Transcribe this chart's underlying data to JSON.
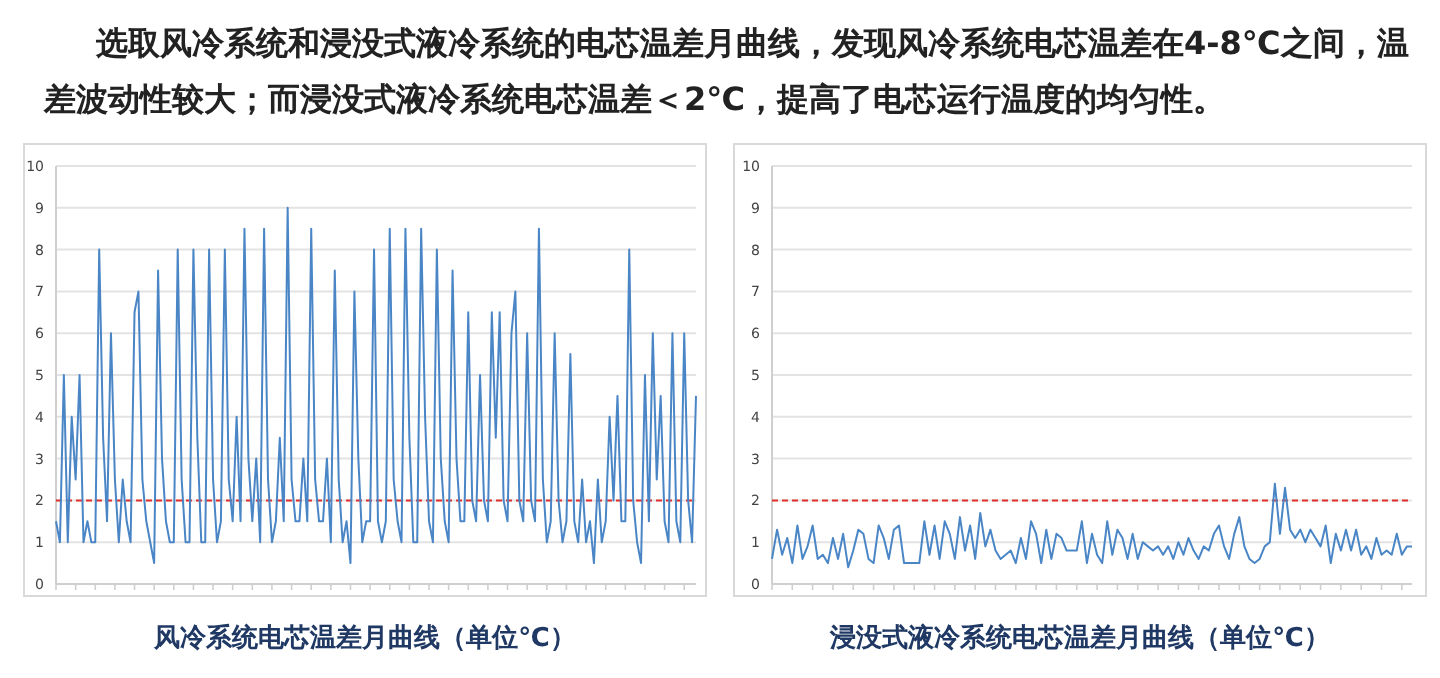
{
  "chart_data": [
    {
      "type": "line",
      "title": "风冷系统电芯温差月曲线（单位℃）",
      "annotations": [
        "选取风冷系统和浸没式液冷系统的电芯温差月曲线，发现风冷系统电芯温差在4-8℃之间，温差波动性较大；而浸没式液冷系统电芯温差＜2℃，提高了电芯运行温度的均匀性。"
      ],
      "categories": [
        null,
        null,
        null,
        null,
        null,
        null,
        null,
        null,
        null,
        null,
        null,
        null,
        null,
        null,
        null,
        null,
        null,
        null,
        null,
        null,
        null,
        null,
        null,
        null,
        null,
        null,
        null,
        null,
        null,
        null,
        null,
        null,
        null,
        null,
        null,
        null,
        null,
        null,
        null,
        null,
        null,
        null,
        null,
        null,
        null,
        null,
        null,
        null,
        null,
        null,
        null,
        null,
        null,
        null,
        null,
        null,
        null,
        null,
        null,
        null,
        null,
        null,
        null,
        null,
        null,
        null,
        null,
        null,
        null,
        null,
        null,
        null,
        null,
        null,
        null,
        null,
        null,
        null,
        null,
        null,
        null,
        null,
        null,
        null,
        null,
        null,
        null,
        null,
        null,
        null,
        null,
        null,
        null,
        null,
        null,
        null,
        null,
        null,
        null,
        null,
        null,
        null,
        null,
        null,
        null,
        null,
        null,
        null,
        null,
        null,
        null,
        null,
        null,
        null,
        null,
        null,
        null,
        null,
        null,
        null,
        null,
        null,
        null,
        null,
        null,
        null,
        null,
        null,
        null,
        null,
        null,
        null,
        null,
        null,
        null,
        null,
        null,
        null,
        null,
        null,
        null,
        null,
        null,
        null,
        null,
        null,
        null,
        null,
        null,
        null,
        null,
        null,
        null,
        null,
        null,
        null,
        null,
        null,
        null,
        null,
        null,
        null,
        null,
        null
      ],
      "values": [
        1.5,
        1,
        5,
        1,
        4,
        2.5,
        5,
        1,
        1.5,
        1,
        1,
        8,
        3.5,
        1.5,
        6,
        2.5,
        1,
        2.5,
        1.5,
        1,
        6.5,
        7,
        2.5,
        1.5,
        1,
        0.5,
        7.5,
        3,
        1.5,
        1,
        1,
        8,
        2.5,
        1,
        1,
        8,
        3.5,
        1,
        1,
        8,
        2.5,
        1,
        1.5,
        8,
        2.5,
        1.5,
        4,
        1.5,
        8.5,
        3,
        1.5,
        3,
        1,
        8.5,
        2.5,
        1,
        1.5,
        3.5,
        1.5,
        9,
        2.5,
        1.5,
        1.5,
        3,
        1.5,
        8.5,
        2.5,
        1.5,
        1.5,
        3,
        1,
        7.5,
        2.5,
        1,
        1.5,
        0.5,
        7,
        3,
        1,
        1.5,
        1.5,
        8,
        1.5,
        1,
        1.5,
        8.5,
        2.5,
        1.5,
        1,
        8.5,
        3.5,
        1,
        1,
        8.5,
        4,
        1.5,
        1,
        8,
        3,
        1.5,
        1,
        7.5,
        3,
        1.5,
        1.5,
        6.5,
        2,
        1.5,
        5,
        2,
        1.5,
        6.5,
        3.5,
        6.5,
        2,
        1.5,
        6,
        7,
        2,
        1.5,
        6,
        2,
        1.5,
        8.5,
        2.5,
        1,
        1.5,
        6,
        2,
        1,
        1.5,
        5.5,
        1.5,
        1,
        2.5,
        1,
        1.5,
        0.5,
        2.5,
        1,
        1.5,
        4,
        2,
        4.5,
        1.5,
        1.5,
        8,
        2,
        1,
        0.5,
        5,
        1.5,
        6,
        2.5,
        4.5,
        1.5,
        1,
        6,
        1.5,
        1,
        6,
        2,
        1,
        4.5
      ],
      "color": "#4a86c6",
      "ylim": [
        0,
        10
      ],
      "yticks": [
        0,
        1,
        2,
        3,
        4,
        5,
        6,
        7,
        8,
        9,
        10
      ],
      "grid": "y",
      "tick_labels": "y",
      "ref_lines": [
        {
          "axis": "y",
          "value": 2,
          "color": "#e0302a",
          "line_style": "dashed"
        }
      ]
    },
    {
      "type": "line",
      "title": "浸没式液冷系统电芯温差月曲线（单位℃）",
      "categories": [
        null,
        null,
        null,
        null,
        null,
        null,
        null,
        null,
        null,
        null,
        null,
        null,
        null,
        null,
        null,
        null,
        null,
        null,
        null,
        null,
        null,
        null,
        null,
        null,
        null,
        null,
        null,
        null,
        null,
        null,
        null,
        null,
        null,
        null,
        null,
        null,
        null,
        null,
        null,
        null,
        null,
        null,
        null,
        null,
        null,
        null,
        null,
        null,
        null,
        null,
        null,
        null,
        null,
        null,
        null,
        null,
        null,
        null,
        null,
        null,
        null,
        null,
        null,
        null,
        null,
        null,
        null,
        null,
        null,
        null,
        null,
        null,
        null,
        null,
        null,
        null,
        null,
        null,
        null,
        null,
        null,
        null,
        null,
        null,
        null,
        null,
        null,
        null,
        null,
        null,
        null,
        null,
        null,
        null,
        null,
        null,
        null,
        null,
        null,
        null,
        null,
        null,
        null,
        null,
        null,
        null,
        null,
        null,
        null,
        null,
        null,
        null,
        null,
        null,
        null,
        null,
        null,
        null,
        null,
        null,
        null,
        null,
        null,
        null,
        null,
        null,
        null
      ],
      "values": [
        0.6,
        1.3,
        0.7,
        1.1,
        0.5,
        1.4,
        0.6,
        0.9,
        1.4,
        0.6,
        0.7,
        0.5,
        1.1,
        0.6,
        1.2,
        0.4,
        0.8,
        1.3,
        1.2,
        0.6,
        0.5,
        1.4,
        1.1,
        0.6,
        1.3,
        1.4,
        0.5,
        0.5,
        0.5,
        0.5,
        1.5,
        0.7,
        1.4,
        0.6,
        1.5,
        1.2,
        0.6,
        1.6,
        0.8,
        1.4,
        0.6,
        1.7,
        0.9,
        1.3,
        0.8,
        0.6,
        0.7,
        0.8,
        0.5,
        1.1,
        0.6,
        1.5,
        1.2,
        0.5,
        1.3,
        0.6,
        1.2,
        1.1,
        0.8,
        0.8,
        0.8,
        1.5,
        0.5,
        1.2,
        0.7,
        0.5,
        1.5,
        0.7,
        1.3,
        1.1,
        0.6,
        1.2,
        0.6,
        1,
        0.9,
        0.8,
        0.9,
        0.7,
        0.9,
        0.6,
        1,
        0.7,
        1.1,
        0.8,
        0.6,
        0.9,
        0.8,
        1.2,
        1.4,
        0.9,
        0.6,
        1.2,
        1.6,
        0.9,
        0.6,
        0.5,
        0.6,
        0.9,
        1,
        2.4,
        1.2,
        2.3,
        1.3,
        1.1,
        1.3,
        1,
        1.3,
        1.1,
        0.9,
        1.4,
        0.5,
        1.2,
        0.8,
        1.3,
        0.8,
        1.3,
        0.7,
        0.9,
        0.6,
        1.1,
        0.7,
        0.8,
        0.7,
        1.2,
        0.7,
        0.9,
        0.9
      ],
      "color": "#4a86c6",
      "ylim": [
        0,
        10
      ],
      "yticks": [
        0,
        1,
        2,
        3,
        4,
        5,
        6,
        7,
        8,
        9,
        10
      ],
      "grid": "y",
      "tick_labels": "y",
      "ref_lines": [
        {
          "axis": "y",
          "value": 2,
          "color": "#e0302a",
          "line_style": "dashed"
        }
      ]
    }
  ]
}
